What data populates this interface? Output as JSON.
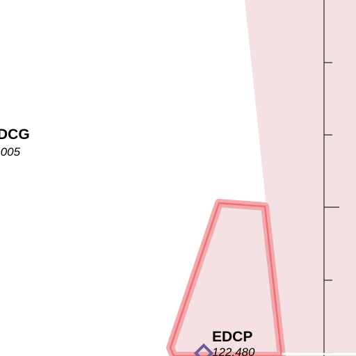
{
  "labels": [
    {
      "name": "DCG",
      "frequency": ".005"
    },
    {
      "name": "EDCP",
      "frequency": "122.480"
    }
  ]
}
